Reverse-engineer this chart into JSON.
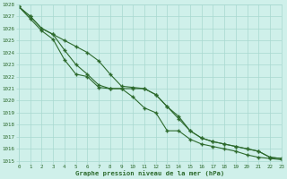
{
  "x": [
    0,
    1,
    2,
    3,
    4,
    5,
    6,
    7,
    8,
    9,
    10,
    11,
    12,
    13,
    14,
    15,
    16,
    17,
    18,
    19,
    20,
    21,
    22,
    23
  ],
  "line1": [
    1027.8,
    1027.0,
    1026.0,
    1025.5,
    1025.0,
    1024.5,
    1024.0,
    1023.3,
    1022.2,
    1021.2,
    1021.1,
    1021.0,
    1020.5,
    1019.5,
    1018.5,
    1017.5,
    1016.9,
    1016.6,
    1016.4,
    1016.2,
    1016.0,
    1015.8,
    1015.3,
    1015.2
  ],
  "line2": [
    1027.8,
    1027.0,
    1026.0,
    1025.5,
    1024.2,
    1023.0,
    1022.2,
    1021.3,
    1021.0,
    1021.0,
    1021.0,
    1021.0,
    1020.5,
    1019.5,
    1018.7,
    1017.5,
    1016.9,
    1016.6,
    1016.4,
    1016.2,
    1016.0,
    1015.8,
    1015.3,
    1015.2
  ],
  "line3": [
    1027.8,
    1026.8,
    1025.8,
    1025.1,
    1023.4,
    1022.2,
    1022.0,
    1021.1,
    1021.0,
    1021.0,
    1020.3,
    1019.4,
    1019.0,
    1017.5,
    1017.5,
    1016.8,
    1016.4,
    1016.2,
    1016.0,
    1015.8,
    1015.5,
    1015.3,
    1015.2,
    1015.1
  ],
  "line_color": "#2d6a2d",
  "bg_color": "#cff0ea",
  "grid_color": "#a8d8d0",
  "xlabel": "Graphe pression niveau de la mer (hPa)",
  "ylim": [
    1015,
    1028
  ],
  "xlim": [
    0,
    23
  ],
  "yticks": [
    1015,
    1016,
    1017,
    1018,
    1019,
    1020,
    1021,
    1022,
    1023,
    1024,
    1025,
    1026,
    1027,
    1028
  ],
  "xticks": [
    0,
    1,
    2,
    3,
    4,
    5,
    6,
    7,
    8,
    9,
    10,
    11,
    12,
    13,
    14,
    15,
    16,
    17,
    18,
    19,
    20,
    21,
    22,
    23
  ]
}
